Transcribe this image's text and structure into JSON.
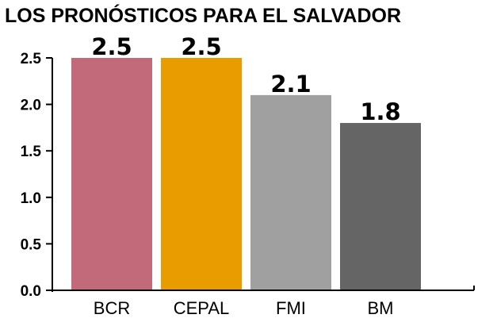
{
  "chart_data": {
    "type": "bar",
    "title": "LOS PRONÓSTICOS PARA EL SALVADOR",
    "xlabel": "",
    "ylabel": "",
    "categories": [
      "BCR",
      "CEPAL",
      "FMI",
      "BM"
    ],
    "values": [
      2.5,
      2.5,
      2.1,
      1.8
    ],
    "data_labels": [
      "2.5",
      "2.5",
      "2.1",
      "1.8"
    ],
    "colors": [
      "#c26a79",
      "#e89c00",
      "#a0a0a0",
      "#656565"
    ],
    "ylim": [
      0,
      2.5
    ],
    "yticks": [
      0.0,
      0.5,
      1.0,
      1.5,
      2.0,
      2.5
    ],
    "ytick_labels": [
      "0.0",
      "0.5",
      "1.0",
      "1.5",
      "2.0",
      "2.5"
    ],
    "grid": false,
    "legend": "none"
  }
}
